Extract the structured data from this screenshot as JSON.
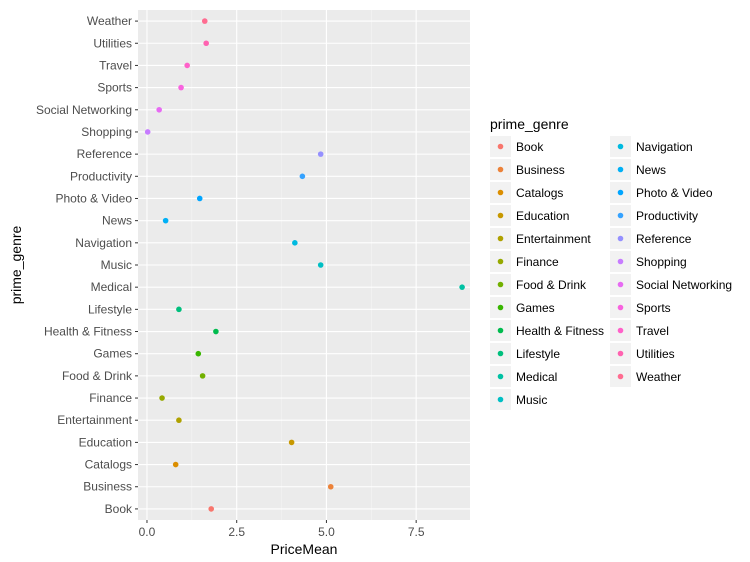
{
  "chart_data": {
    "type": "scatter",
    "xlabel": "PriceMean",
    "ylabel": "prime_genre",
    "xlim": [
      -0.25,
      9.0
    ],
    "x_ticks": [
      0.0,
      2.5,
      5.0,
      7.5
    ],
    "x_tick_labels": [
      "0.0",
      "2.5",
      "5.0",
      "7.5"
    ],
    "grid": true,
    "legend": {
      "title": "prime_genre",
      "position": "right",
      "columns": 2
    },
    "categories": [
      "Book",
      "Business",
      "Catalogs",
      "Education",
      "Entertainment",
      "Finance",
      "Food & Drink",
      "Games",
      "Health & Fitness",
      "Lifestyle",
      "Medical",
      "Music",
      "Navigation",
      "News",
      "Photo & Video",
      "Productivity",
      "Reference",
      "Shopping",
      "Social Networking",
      "Sports",
      "Travel",
      "Utilities",
      "Weather"
    ],
    "values": [
      1.79,
      5.12,
      0.8,
      4.03,
      0.89,
      0.42,
      1.55,
      1.43,
      1.92,
      0.89,
      8.78,
      4.84,
      4.12,
      0.52,
      1.47,
      4.33,
      4.84,
      0.02,
      0.34,
      0.95,
      1.12,
      1.65,
      1.61
    ],
    "colors": [
      "#F8766D",
      "#EC8239",
      "#DB8E00",
      "#C79800",
      "#AFA100",
      "#96A900",
      "#72B000",
      "#39B600",
      "#00BB4E",
      "#00BF7D",
      "#00C1A3",
      "#00BFC4",
      "#00BAE0",
      "#00B0F6",
      "#00A5FF",
      "#35A2FF",
      "#9590FF",
      "#C77CFF",
      "#E76BF3",
      "#F863DF",
      "#FF61C9",
      "#FF62B0",
      "#FF6C91"
    ]
  }
}
